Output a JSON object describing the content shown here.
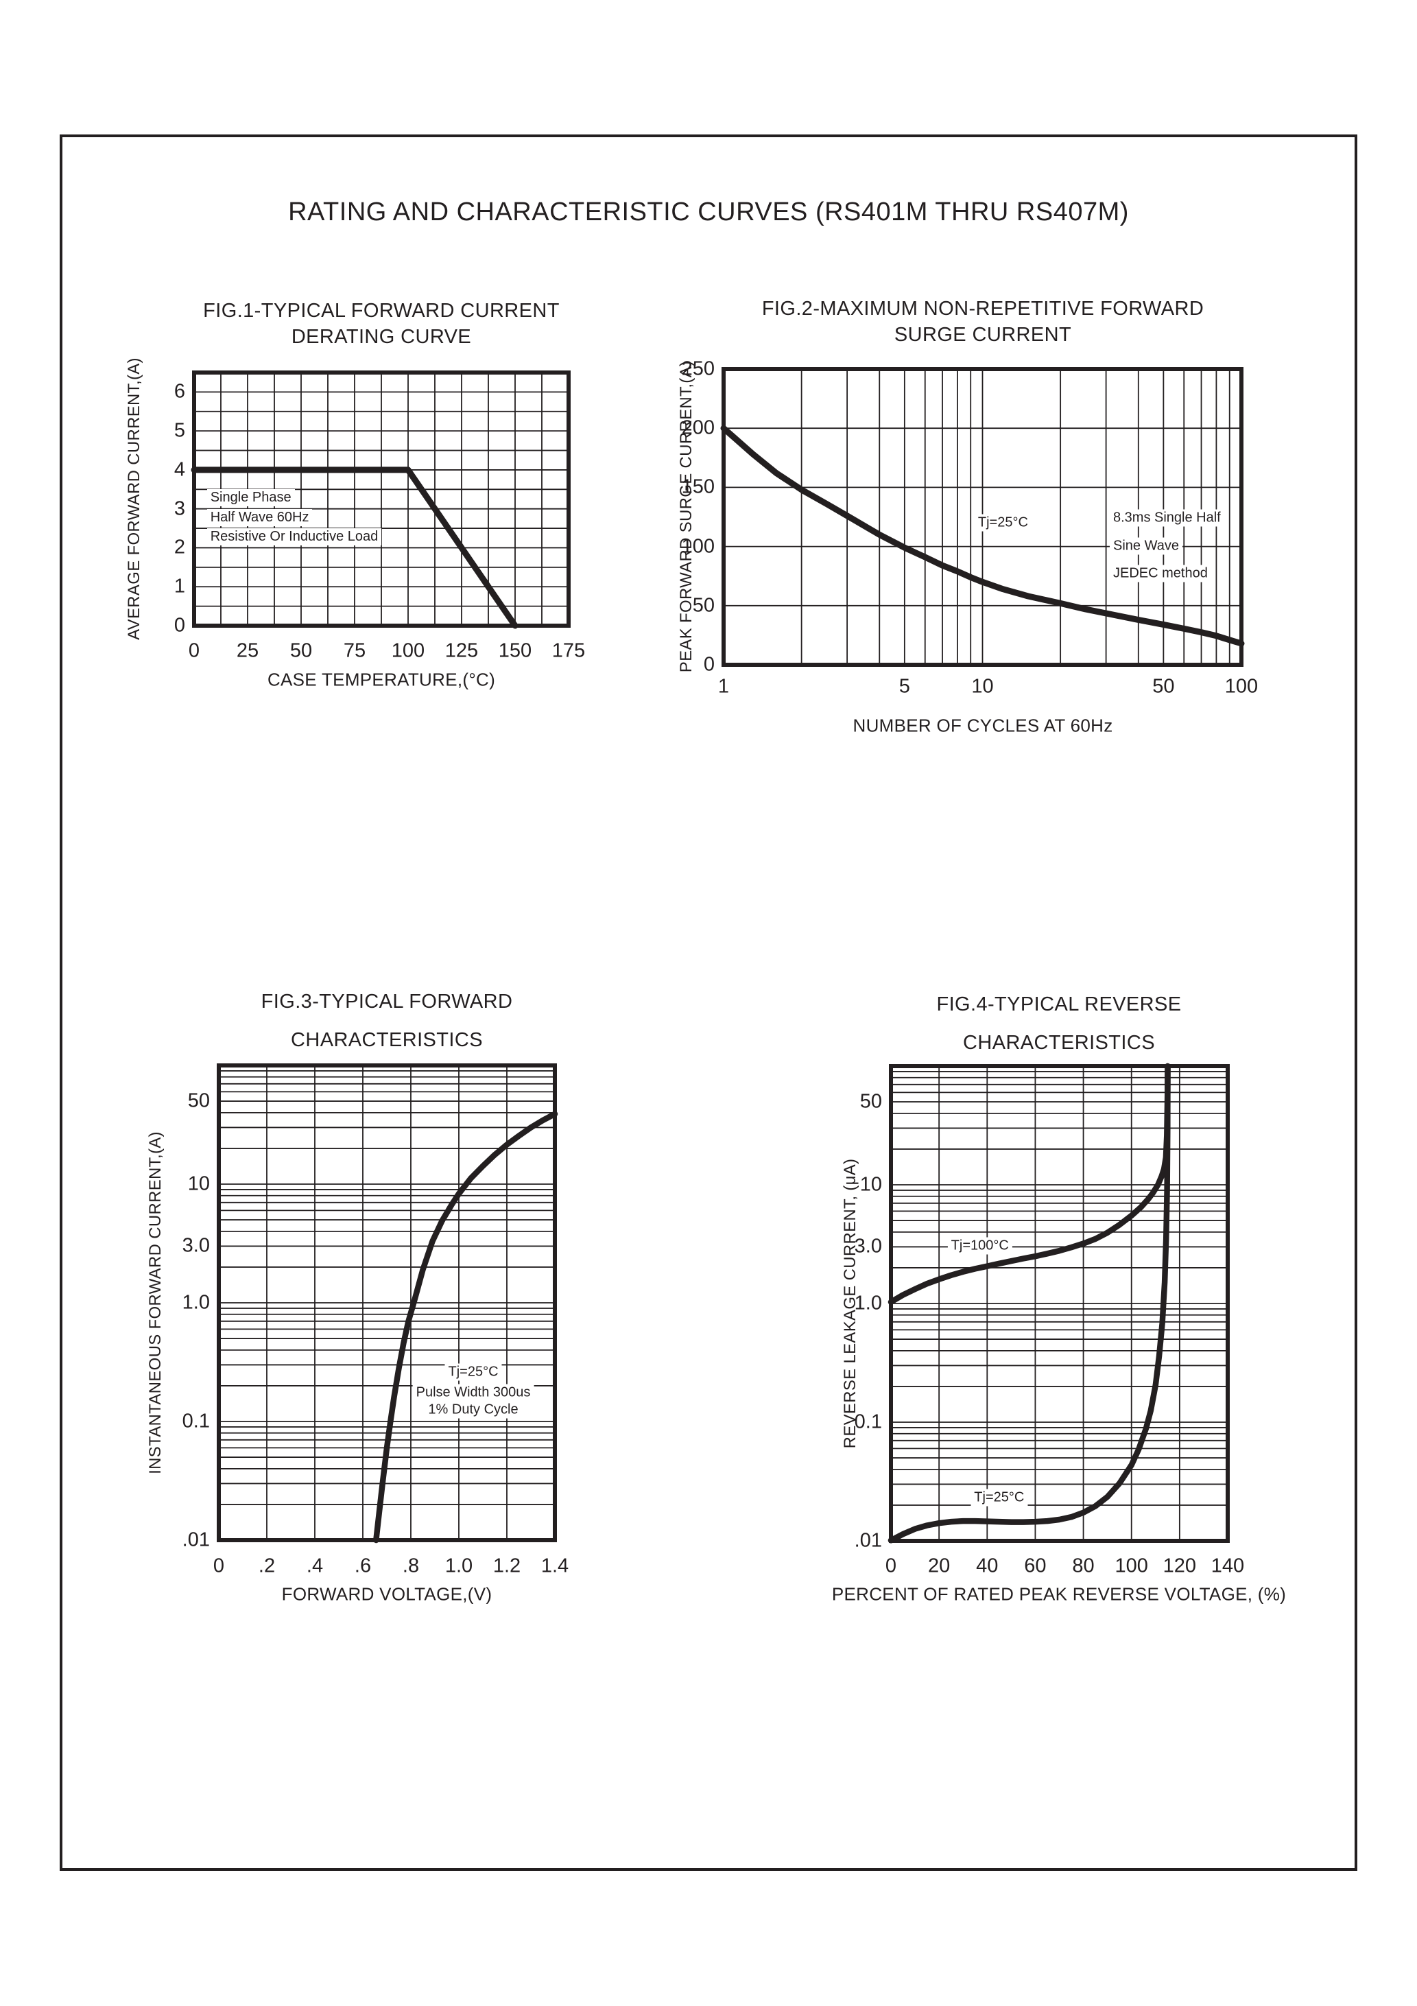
{
  "page": {
    "title": "RATING AND CHARACTERISTIC CURVES (RS401M THRU RS407M)",
    "ink_color": "#231f20",
    "background_color": "#ffffff"
  },
  "chart_data": [
    {
      "type": "line",
      "title_lines": [
        "FIG.1-TYPICAL FORWARD CURRENT",
        "DERATING CURVE"
      ],
      "ylabel": "AVERAGE FORWARD CURRENT,(A)",
      "xlabel": "CASE TEMPERATURE,(°C)",
      "x": {
        "scale": "linear",
        "min": 0,
        "max": 175,
        "grid_step": 12.5
      },
      "y": {
        "scale": "linear",
        "min": 0,
        "max": 6.5,
        "grid_step": 0.5
      },
      "xticks": [
        [
          "0",
          0
        ],
        [
          "25",
          25
        ],
        [
          "50",
          50
        ],
        [
          "75",
          75
        ],
        [
          "100",
          100
        ],
        [
          "125",
          125
        ],
        [
          "150",
          150
        ],
        [
          "175",
          175
        ]
      ],
      "yticks": [
        [
          "6",
          6
        ],
        [
          "5",
          5
        ],
        [
          "4",
          4
        ],
        [
          "3",
          3
        ],
        [
          "2",
          2
        ],
        [
          "1",
          1
        ],
        [
          "0",
          0
        ]
      ],
      "series": [
        {
          "name": "derating-curve",
          "width": 9,
          "points": [
            [
              0,
              4
            ],
            [
              100,
              4
            ],
            [
              150,
              0
            ]
          ]
        }
      ],
      "annotations": [
        {
          "t": "Single Phase",
          "x": 6,
          "y": 3.06,
          "ha": "left",
          "va": "bottom"
        },
        {
          "t": "Half Wave 60Hz",
          "x": 6,
          "y": 2.56,
          "ha": "left",
          "va": "bottom"
        },
        {
          "t": "Resistive Or Inductive Load",
          "x": 6,
          "y": 2.06,
          "ha": "left",
          "va": "bottom"
        }
      ],
      "layout": {
        "plot": {
          "l": 283,
          "t": 543,
          "r": 829,
          "b": 912
        },
        "title_cx": 556,
        "title_y": [
          437,
          475
        ],
        "ylabel_c": [
          196,
          727
        ],
        "xlabel_c": [
          556,
          991
        ],
        "xtick_y": 949
      }
    },
    {
      "type": "line",
      "title_lines": [
        "FIG.2-MAXIMUM NON-REPETITIVE FORWARD",
        "SURGE CURRENT"
      ],
      "ylabel": "PEAK FORWARD SURGE CURRENT,(A)",
      "xlabel": "NUMBER OF CYCLES AT 60Hz",
      "x": {
        "scale": "log",
        "min": 1,
        "max": 100
      },
      "y": {
        "scale": "linear",
        "min": 0,
        "max": 250,
        "grid_step": 50
      },
      "xticks": [
        [
          "1",
          1
        ],
        [
          "5",
          5
        ],
        [
          "10",
          10
        ],
        [
          "50",
          50
        ],
        [
          "100",
          100
        ]
      ],
      "yticks": [
        [
          "250",
          250
        ],
        [
          "200",
          200
        ],
        [
          "150",
          150
        ],
        [
          "100",
          100
        ],
        [
          "50",
          50
        ],
        [
          "0",
          0
        ]
      ],
      "series": [
        {
          "name": "surge-current",
          "width": 9,
          "points": [
            [
              1,
              200
            ],
            [
              1.3,
              178
            ],
            [
              1.6,
              162
            ],
            [
              2,
              148
            ],
            [
              2.5,
              136
            ],
            [
              3,
              126
            ],
            [
              4,
              110
            ],
            [
              5,
              99
            ],
            [
              6,
              91
            ],
            [
              7,
              84
            ],
            [
              8,
              79
            ],
            [
              9,
              74
            ],
            [
              10,
              70
            ],
            [
              12,
              64
            ],
            [
              15,
              58
            ],
            [
              20,
              52
            ],
            [
              25,
              47
            ],
            [
              30,
              43.5
            ],
            [
              40,
              38
            ],
            [
              50,
              34
            ],
            [
              60,
              30.5
            ],
            [
              70,
              27.5
            ],
            [
              80,
              24.5
            ],
            [
              90,
              21
            ],
            [
              100,
              18
            ]
          ]
        }
      ],
      "annotations": [
        {
          "t": "Tj=25°C",
          "x": 12,
          "y": 120,
          "ha": "center",
          "va": "middle"
        },
        {
          "t": "8.3ms Single Half",
          "x": 31,
          "y": 124,
          "ha": "left",
          "va": "middle"
        },
        {
          "t": "Sine Wave",
          "x": 31,
          "y": 100.5,
          "ha": "left",
          "va": "middle"
        },
        {
          "t": "JEDEC method",
          "x": 31,
          "y": 77,
          "ha": "left",
          "va": "middle"
        }
      ],
      "layout": {
        "plot": {
          "l": 1055,
          "t": 538,
          "r": 1810,
          "b": 969
        },
        "title_cx": 1433,
        "title_y": [
          434,
          472
        ],
        "ylabel_c": [
          1001,
          753
        ],
        "xlabel_c": [
          1433,
          1058
        ],
        "xtick_y": 1001
      }
    },
    {
      "type": "line",
      "title_lines": [
        "FIG.3-TYPICAL FORWARD",
        "CHARACTERISTICS"
      ],
      "ylabel": "INSTANTANEOUS FORWARD CURRENT,(A)",
      "xlabel": "FORWARD VOLTAGE,(V)",
      "x": {
        "scale": "linear",
        "min": 0,
        "max": 1.4,
        "grid_step": 0.2
      },
      "y": {
        "scale": "log",
        "min": 0.01,
        "max": 100
      },
      "xticks": [
        [
          "0",
          0
        ],
        [
          ".2",
          0.2
        ],
        [
          ".4",
          0.4
        ],
        [
          ".6",
          0.6
        ],
        [
          ".8",
          0.8
        ],
        [
          "1.0",
          1.0
        ],
        [
          "1.2",
          1.2
        ],
        [
          "1.4",
          1.4
        ]
      ],
      "yticks": [
        [
          "50",
          50
        ],
        [
          "10",
          10
        ],
        [
          "3.0",
          3
        ],
        [
          "1.0",
          1
        ],
        [
          "0.1",
          0.1
        ],
        [
          ".01",
          0.01
        ]
      ],
      "series": [
        {
          "name": "forward-characteristic",
          "width": 8.5,
          "points": [
            [
              0.655,
              0.01
            ],
            [
              0.668,
              0.017
            ],
            [
              0.682,
              0.03
            ],
            [
              0.7,
              0.06
            ],
            [
              0.715,
              0.1
            ],
            [
              0.73,
              0.16
            ],
            [
              0.75,
              0.28
            ],
            [
              0.77,
              0.46
            ],
            [
              0.79,
              0.7
            ],
            [
              0.815,
              1.05
            ],
            [
              0.85,
              1.9
            ],
            [
              0.89,
              3.3
            ],
            [
              0.93,
              4.9
            ],
            [
              0.97,
              6.7
            ],
            [
              1.0,
              8.3
            ],
            [
              1.05,
              11.2
            ],
            [
              1.1,
              14.2
            ],
            [
              1.15,
              17.7
            ],
            [
              1.2,
              21.5
            ],
            [
              1.25,
              25.5
            ],
            [
              1.3,
              30
            ],
            [
              1.35,
              34.5
            ],
            [
              1.4,
              39
            ]
          ]
        }
      ],
      "annotations": [
        {
          "t": "Tj=25°C",
          "x": 1.06,
          "y": 0.26,
          "ha": "center",
          "va": "middle"
        },
        {
          "t": "Pulse Width 300us",
          "x": 1.06,
          "y": 0.175,
          "ha": "center",
          "va": "middle"
        },
        {
          "t": "1% Duty Cycle",
          "x": 1.06,
          "y": 0.125,
          "ha": "center",
          "va": "middle"
        }
      ],
      "layout": {
        "plot": {
          "l": 319,
          "t": 1553,
          "r": 809,
          "b": 2245
        },
        "title_cx": 564,
        "title_y": [
          1444,
          1500
        ],
        "ylabel_c": [
          227,
          1899
        ],
        "xlabel_c": [
          564,
          2324
        ],
        "xtick_y": 2283
      }
    },
    {
      "type": "line",
      "title_lines": [
        "FIG.4-TYPICAL REVERSE",
        "CHARACTERISTICS"
      ],
      "ylabel": "REVERSE LEAKAGE CURRENT, (μA)",
      "xlabel": "PERCENT OF RATED PEAK REVERSE VOLTAGE, (%)",
      "x": {
        "scale": "linear",
        "min": 0,
        "max": 140,
        "grid_step": 20
      },
      "y": {
        "scale": "log",
        "min": 0.01,
        "max": 100
      },
      "xticks": [
        [
          "0",
          0
        ],
        [
          "20",
          20
        ],
        [
          "40",
          40
        ],
        [
          "60",
          60
        ],
        [
          "80",
          80
        ],
        [
          "100",
          100
        ],
        [
          "120",
          120
        ],
        [
          "140",
          140
        ]
      ],
      "yticks": [
        [
          "50",
          50
        ],
        [
          "10",
          10
        ],
        [
          "3.0",
          3
        ],
        [
          "1.0",
          1
        ],
        [
          "0.1",
          0.1
        ],
        [
          ".01",
          0.01
        ]
      ],
      "series": [
        {
          "name": "reverse-leakage-100C",
          "width": 8.5,
          "points": [
            [
              0,
              1.03
            ],
            [
              5,
              1.18
            ],
            [
              10,
              1.32
            ],
            [
              15,
              1.47
            ],
            [
              20,
              1.6
            ],
            [
              25,
              1.73
            ],
            [
              30,
              1.85
            ],
            [
              35,
              1.96
            ],
            [
              40,
              2.06
            ],
            [
              45,
              2.17
            ],
            [
              50,
              2.28
            ],
            [
              55,
              2.39
            ],
            [
              60,
              2.5
            ],
            [
              65,
              2.63
            ],
            [
              70,
              2.78
            ],
            [
              75,
              2.97
            ],
            [
              80,
              3.2
            ],
            [
              85,
              3.5
            ],
            [
              90,
              3.95
            ],
            [
              95,
              4.6
            ],
            [
              100,
              5.5
            ],
            [
              104,
              6.5
            ],
            [
              107,
              7.6
            ],
            [
              109,
              8.6
            ],
            [
              111,
              10
            ],
            [
              112.5,
              11.8
            ],
            [
              113.5,
              13.6
            ],
            [
              114.3,
              17
            ],
            [
              114.7,
              26
            ],
            [
              115,
              60
            ],
            [
              115.05,
              100
            ]
          ]
        },
        {
          "name": "reverse-leakage-25C",
          "width": 8.5,
          "points": [
            [
              0,
              0.0101
            ],
            [
              5,
              0.0114
            ],
            [
              10,
              0.0126
            ],
            [
              15,
              0.0135
            ],
            [
              20,
              0.0141
            ],
            [
              25,
              0.0145
            ],
            [
              30,
              0.0147
            ],
            [
              35,
              0.0147
            ],
            [
              40,
              0.0146
            ],
            [
              45,
              0.0145
            ],
            [
              50,
              0.0144
            ],
            [
              55,
              0.0144
            ],
            [
              60,
              0.0145
            ],
            [
              65,
              0.0147
            ],
            [
              70,
              0.0151
            ],
            [
              75,
              0.0159
            ],
            [
              80,
              0.0173
            ],
            [
              85,
              0.0196
            ],
            [
              90,
              0.0235
            ],
            [
              95,
              0.0305
            ],
            [
              100,
              0.0435
            ],
            [
              103,
              0.059
            ],
            [
              106,
              0.088
            ],
            [
              108,
              0.125
            ],
            [
              110,
              0.205
            ],
            [
              111.5,
              0.36
            ],
            [
              112.8,
              0.68
            ],
            [
              113.8,
              1.5
            ],
            [
              114.4,
              3.5
            ],
            [
              114.8,
              9
            ],
            [
              115,
              30
            ],
            [
              115.05,
              100
            ]
          ]
        }
      ],
      "annotations": [
        {
          "t": "Tj=100°C",
          "x": 37,
          "y": 3.05,
          "ha": "center",
          "va": "middle"
        },
        {
          "t": "Tj=25°C",
          "x": 45,
          "y": 0.023,
          "ha": "center",
          "va": "middle"
        }
      ],
      "layout": {
        "plot": {
          "l": 1299,
          "t": 1554,
          "r": 1790,
          "b": 2246
        },
        "title_cx": 1544,
        "title_y": [
          1448,
          1504
        ],
        "ylabel_c": [
          1240,
          1900
        ],
        "xlabel_c": [
          1544,
          2324
        ],
        "xtick_y": 2283
      }
    }
  ]
}
